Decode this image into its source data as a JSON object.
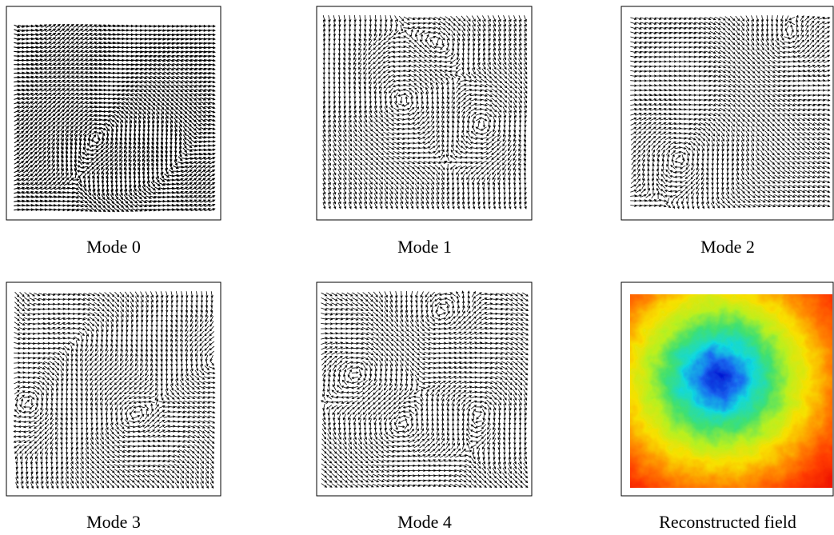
{
  "panels": [
    {
      "caption": "Mode 0"
    },
    {
      "caption": "Mode 1"
    },
    {
      "caption": "Mode 2"
    },
    {
      "caption": "Mode 3"
    },
    {
      "caption": "Mode 4"
    },
    {
      "caption": "Reconstructed field"
    }
  ]
}
